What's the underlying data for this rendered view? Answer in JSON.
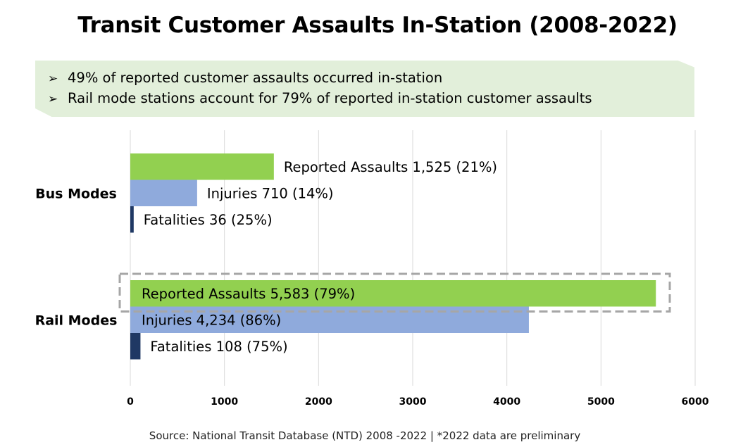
{
  "title": "Transit Customer Assaults In-Station (2008-2022)",
  "callout": {
    "bullets": [
      "49% of reported customer assaults occurred in-station",
      "Rail mode stations account for 79% of reported in-station customer assaults"
    ]
  },
  "source": "Source: National Transit Database (NTD) 2008 -2022 | *2022 data are preliminary",
  "chart_data": {
    "type": "bar",
    "orientation": "horizontal",
    "categories": [
      "Bus Modes",
      "Rail Modes"
    ],
    "series": [
      {
        "color": "#92d050",
        "values": [
          1525,
          5583
        ],
        "labels": [
          "Reported Assaults 1,525 (21%)",
          "Reported Assaults 5,583 (79%)"
        ]
      },
      {
        "color": "#8faadc",
        "values": [
          710,
          4234
        ],
        "labels": [
          "Injuries 710 (14%)",
          "Injuries 4,234 (86%)"
        ]
      },
      {
        "color": "#1f3864",
        "values": [
          36,
          108
        ],
        "labels": [
          "Fatalities 36 (25%)",
          "Fatalities 108 (75%)"
        ]
      }
    ],
    "xlim": [
      0,
      6000
    ],
    "xticks": [
      0,
      1000,
      2000,
      3000,
      4000,
      5000,
      6000
    ],
    "grid": true,
    "highlight": {
      "category": "Rail Modes",
      "series_index": 0,
      "style": "dashed-box"
    }
  }
}
